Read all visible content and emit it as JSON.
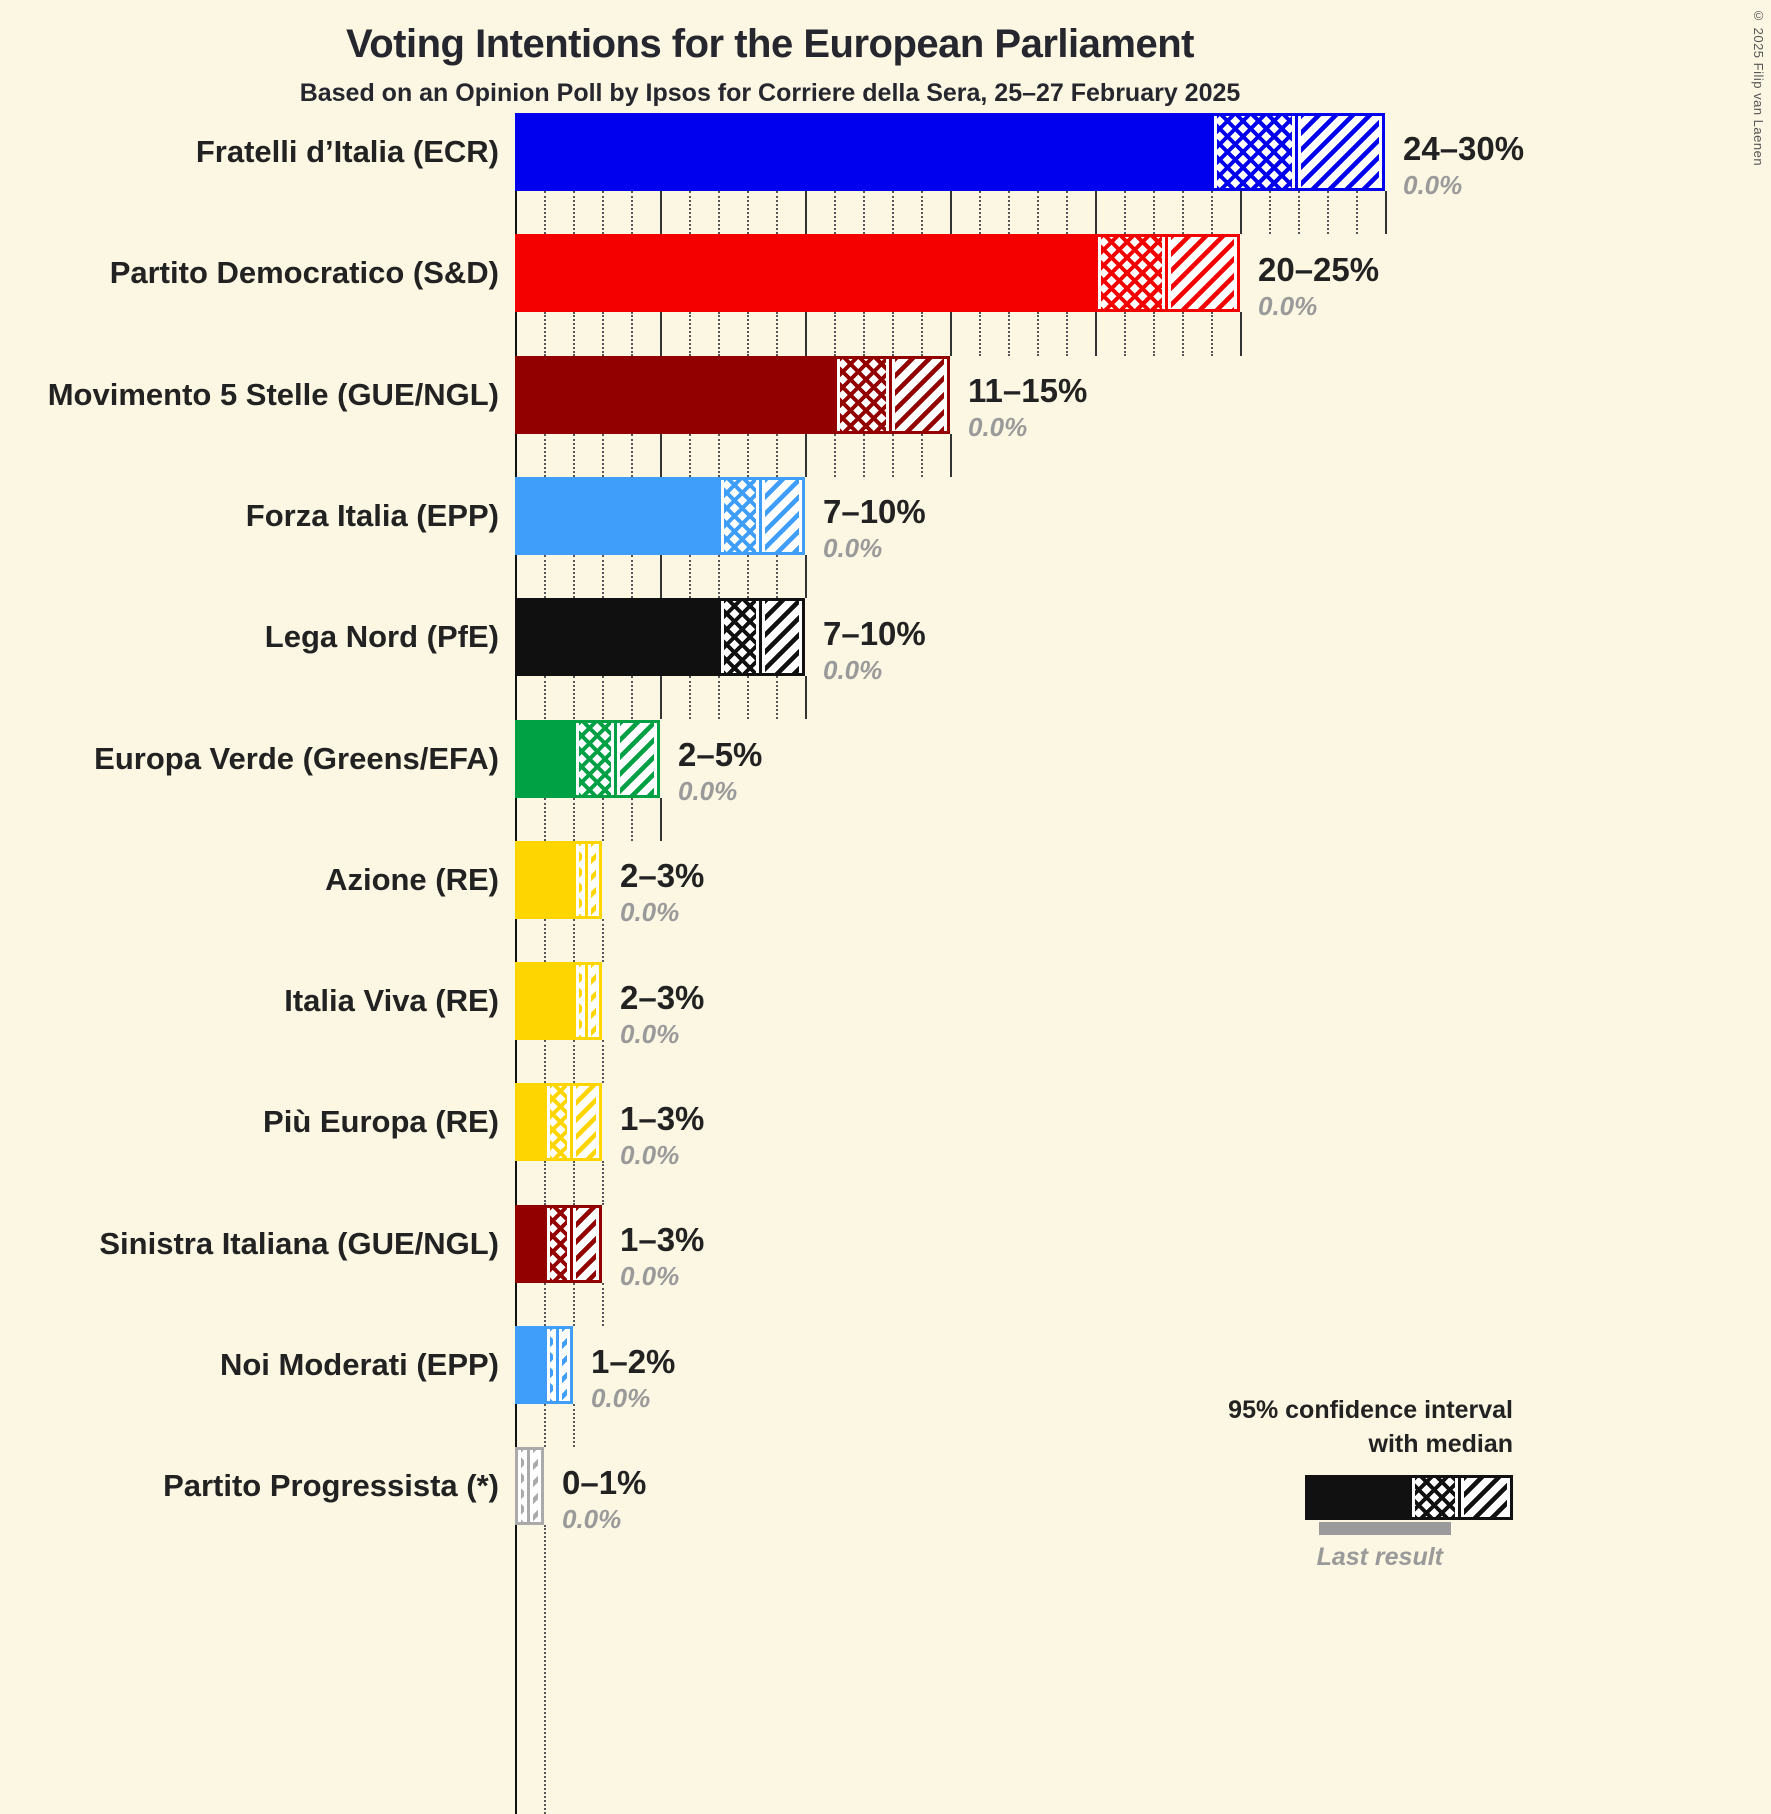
{
  "title": "Voting Intentions for the European Parliament",
  "subtitle": "Based on an Opinion Poll by Ipsos for Corriere della Sera, 25–27 February 2025",
  "copyright": "© 2025 Filip van Laenen",
  "legend": {
    "ci_line1": "95% confidence interval",
    "ci_line2": "with median",
    "last_result": "Last result",
    "sample_color": "#111111",
    "last_result_color": "#9a9a9a"
  },
  "chart_data": {
    "type": "bar",
    "orientation": "horizontal",
    "x_unit": "%",
    "xlim": [
      0,
      30
    ],
    "gridlines": {
      "minor_step": 1,
      "major_step": 5,
      "minor_style": "dotted",
      "major_style": "solid"
    },
    "bars": [
      {
        "party": "Fratelli d’Italia (ECR)",
        "color": "#0000EE",
        "ci_low": 24,
        "median": 27,
        "ci_high": 30,
        "range_label": "24–30%",
        "last_result": 0.0,
        "last_result_label": "0.0%"
      },
      {
        "party": "Partito Democratico (S&D)",
        "color": "#F40000",
        "ci_low": 20,
        "median": 22.5,
        "ci_high": 25,
        "range_label": "20–25%",
        "last_result": 0.0,
        "last_result_label": "0.0%"
      },
      {
        "party": "Movimento 5 Stelle (GUE/NGL)",
        "color": "#920000",
        "ci_low": 11,
        "median": 13,
        "ci_high": 15,
        "range_label": "11–15%",
        "last_result": 0.0,
        "last_result_label": "0.0%"
      },
      {
        "party": "Forza Italia (EPP)",
        "color": "#3E9EFA",
        "ci_low": 7,
        "median": 8.5,
        "ci_high": 10,
        "range_label": "7–10%",
        "last_result": 0.0,
        "last_result_label": "0.0%"
      },
      {
        "party": "Lega Nord (PfE)",
        "color": "#101010",
        "ci_low": 7,
        "median": 8.5,
        "ci_high": 10,
        "range_label": "7–10%",
        "last_result": 0.0,
        "last_result_label": "0.0%"
      },
      {
        "party": "Europa Verde (Greens/EFA)",
        "color": "#00A045",
        "ci_low": 2,
        "median": 3.5,
        "ci_high": 5,
        "range_label": "2–5%",
        "last_result": 0.0,
        "last_result_label": "0.0%"
      },
      {
        "party": "Azione (RE)",
        "color": "#FFD500",
        "ci_low": 2,
        "median": 2.5,
        "ci_high": 3,
        "range_label": "2–3%",
        "last_result": 0.0,
        "last_result_label": "0.0%"
      },
      {
        "party": "Italia Viva (RE)",
        "color": "#FFD500",
        "ci_low": 2,
        "median": 2.5,
        "ci_high": 3,
        "range_label": "2–3%",
        "last_result": 0.0,
        "last_result_label": "0.0%"
      },
      {
        "party": "Più Europa (RE)",
        "color": "#FFD500",
        "ci_low": 1,
        "median": 2,
        "ci_high": 3,
        "range_label": "1–3%",
        "last_result": 0.0,
        "last_result_label": "0.0%"
      },
      {
        "party": "Sinistra Italiana (GUE/NGL)",
        "color": "#920000",
        "ci_low": 1,
        "median": 2,
        "ci_high": 3,
        "range_label": "1–3%",
        "last_result": 0.0,
        "last_result_label": "0.0%"
      },
      {
        "party": "Noi Moderati (EPP)",
        "color": "#3E9EFA",
        "ci_low": 1,
        "median": 1.5,
        "ci_high": 2,
        "range_label": "1–2%",
        "last_result": 0.0,
        "last_result_label": "0.0%"
      },
      {
        "party": "Partito Progressista (*)",
        "color": "#AAAAAA",
        "ci_low": 0,
        "median": 0.5,
        "ci_high": 1,
        "range_label": "0–1%",
        "last_result": 0.0,
        "last_result_label": "0.0%"
      }
    ]
  }
}
